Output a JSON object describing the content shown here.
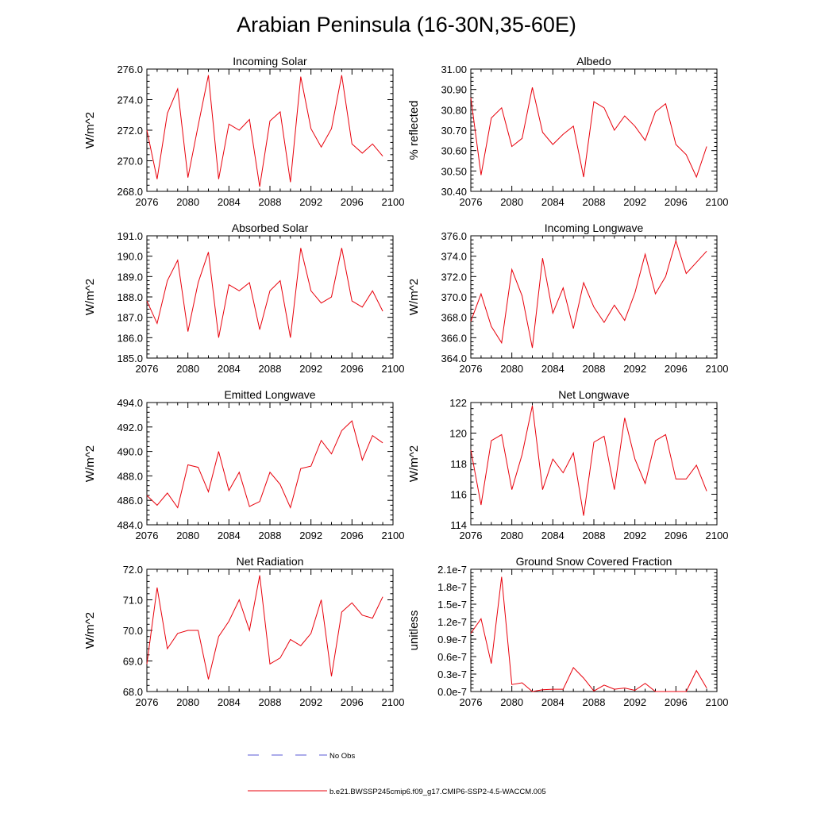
{
  "page": {
    "title": "Arabian Peninsula (16-30N,35-60E)"
  },
  "legend": {
    "no_obs_label": "No Obs",
    "model_label": "b.e21.BWSSP245cmip6.f09_g17.CMIP6-SSP2-4.5-WACCM.005",
    "no_obs_color": "#5a5ad6",
    "model_color": "#e8000b"
  },
  "chart_data": [
    {
      "type": "line",
      "title": "Incoming Solar",
      "ylabel": "W/m^2",
      "xlabel": "",
      "xlim": [
        2076,
        2100
      ],
      "xticks": [
        "2076",
        "2080",
        "2084",
        "2088",
        "2092",
        "2096",
        "2100"
      ],
      "ylim": [
        268.0,
        276.0
      ],
      "yticks": [
        "268.0",
        "270.0",
        "272.0",
        "274.0",
        "276.0"
      ],
      "x": [
        2076,
        2077,
        2078,
        2079,
        2080,
        2081,
        2082,
        2083,
        2084,
        2085,
        2086,
        2087,
        2088,
        2089,
        2090,
        2091,
        2092,
        2093,
        2094,
        2095,
        2096,
        2097,
        2098,
        2099
      ],
      "series": [
        {
          "name": "b.e21.BWSSP245cmip6.f09_g17.CMIP6-SSP2-4.5-WACCM.005",
          "values": [
            272.0,
            268.8,
            273.1,
            274.7,
            268.9,
            272.3,
            275.6,
            268.8,
            272.4,
            272.0,
            272.7,
            268.3,
            272.6,
            273.2,
            268.6,
            275.5,
            272.1,
            270.9,
            272.1,
            275.6,
            271.1,
            270.5,
            271.1,
            270.3
          ]
        }
      ]
    },
    {
      "type": "line",
      "title": "Albedo",
      "ylabel": "% reflected",
      "xlabel": "",
      "xlim": [
        2076,
        2100
      ],
      "xticks": [
        "2076",
        "2080",
        "2084",
        "2088",
        "2092",
        "2096",
        "2100"
      ],
      "ylim": [
        30.4,
        31.0
      ],
      "yticks": [
        "30.40",
        "30.50",
        "30.60",
        "30.70",
        "30.80",
        "30.90",
        "31.00"
      ],
      "x": [
        2076,
        2077,
        2078,
        2079,
        2080,
        2081,
        2082,
        2083,
        2084,
        2085,
        2086,
        2087,
        2088,
        2089,
        2090,
        2091,
        2092,
        2093,
        2094,
        2095,
        2096,
        2097,
        2098,
        2099
      ],
      "series": [
        {
          "name": "b.e21.BWSSP245cmip6.f09_g17.CMIP6-SSP2-4.5-WACCM.005",
          "values": [
            30.86,
            30.48,
            30.76,
            30.81,
            30.62,
            30.66,
            30.91,
            30.69,
            30.63,
            30.68,
            30.72,
            30.47,
            30.84,
            30.81,
            30.7,
            30.77,
            30.72,
            30.65,
            30.79,
            30.83,
            30.63,
            30.58,
            30.47,
            30.62
          ]
        }
      ]
    },
    {
      "type": "line",
      "title": "Absorbed Solar",
      "ylabel": "W/m^2",
      "xlabel": "",
      "xlim": [
        2076,
        2100
      ],
      "xticks": [
        "2076",
        "2080",
        "2084",
        "2088",
        "2092",
        "2096",
        "2100"
      ],
      "ylim": [
        185.0,
        191.0
      ],
      "yticks": [
        "185.0",
        "186.0",
        "187.0",
        "188.0",
        "189.0",
        "190.0",
        "191.0"
      ],
      "x": [
        2076,
        2077,
        2078,
        2079,
        2080,
        2081,
        2082,
        2083,
        2084,
        2085,
        2086,
        2087,
        2088,
        2089,
        2090,
        2091,
        2092,
        2093,
        2094,
        2095,
        2096,
        2097,
        2098,
        2099
      ],
      "series": [
        {
          "name": "b.e21.BWSSP245cmip6.f09_g17.CMIP6-SSP2-4.5-WACCM.005",
          "values": [
            187.8,
            186.7,
            188.8,
            189.8,
            186.3,
            188.7,
            190.2,
            186.0,
            188.6,
            188.3,
            188.7,
            186.4,
            188.3,
            188.8,
            186.0,
            190.4,
            188.3,
            187.7,
            188.0,
            190.4,
            187.8,
            187.5,
            188.3,
            187.3
          ]
        }
      ]
    },
    {
      "type": "line",
      "title": "Incoming Longwave",
      "ylabel": "W/m^2",
      "xlabel": "",
      "xlim": [
        2076,
        2100
      ],
      "xticks": [
        "2076",
        "2080",
        "2084",
        "2088",
        "2092",
        "2096",
        "2100"
      ],
      "ylim": [
        364.0,
        376.0
      ],
      "yticks": [
        "364.0",
        "366.0",
        "368.0",
        "370.0",
        "372.0",
        "374.0",
        "376.0"
      ],
      "x": [
        2076,
        2077,
        2078,
        2079,
        2080,
        2081,
        2082,
        2083,
        2084,
        2085,
        2086,
        2087,
        2088,
        2089,
        2090,
        2091,
        2092,
        2093,
        2094,
        2095,
        2096,
        2097,
        2098,
        2099
      ],
      "series": [
        {
          "name": "b.e21.BWSSP245cmip6.f09_g17.CMIP6-SSP2-4.5-WACCM.005",
          "values": [
            367.6,
            370.3,
            367.1,
            365.5,
            372.7,
            370.1,
            365.0,
            373.8,
            368.4,
            370.9,
            366.9,
            371.4,
            369.0,
            367.5,
            369.2,
            367.7,
            370.4,
            374.2,
            370.3,
            372.0,
            375.5,
            372.3,
            373.4,
            374.5
          ]
        }
      ]
    },
    {
      "type": "line",
      "title": "Emitted Longwave",
      "ylabel": "W/m^2",
      "xlabel": "",
      "xlim": [
        2076,
        2100
      ],
      "xticks": [
        "2076",
        "2080",
        "2084",
        "2088",
        "2092",
        "2096",
        "2100"
      ],
      "ylim": [
        484.0,
        494.0
      ],
      "yticks": [
        "484.0",
        "486.0",
        "488.0",
        "490.0",
        "492.0",
        "494.0"
      ],
      "x": [
        2076,
        2077,
        2078,
        2079,
        2080,
        2081,
        2082,
        2083,
        2084,
        2085,
        2086,
        2087,
        2088,
        2089,
        2090,
        2091,
        2092,
        2093,
        2094,
        2095,
        2096,
        2097,
        2098,
        2099
      ],
      "series": [
        {
          "name": "b.e21.BWSSP245cmip6.f09_g17.CMIP6-SSP2-4.5-WACCM.005",
          "values": [
            486.4,
            485.6,
            486.6,
            485.4,
            488.9,
            488.7,
            486.7,
            490.0,
            486.8,
            488.3,
            485.5,
            485.9,
            488.3,
            487.3,
            485.4,
            488.6,
            488.8,
            490.9,
            489.8,
            491.7,
            492.5,
            489.3,
            491.3,
            490.7
          ]
        }
      ]
    },
    {
      "type": "line",
      "title": "Net Longwave",
      "ylabel": "W/m^2",
      "xlabel": "",
      "xlim": [
        2076,
        2100
      ],
      "xticks": [
        "2076",
        "2080",
        "2084",
        "2088",
        "2092",
        "2096",
        "2100"
      ],
      "ylim": [
        114,
        122
      ],
      "yticks": [
        "114",
        "116",
        "118",
        "120",
        "122"
      ],
      "x": [
        2076,
        2077,
        2078,
        2079,
        2080,
        2081,
        2082,
        2083,
        2084,
        2085,
        2086,
        2087,
        2088,
        2089,
        2090,
        2091,
        2092,
        2093,
        2094,
        2095,
        2096,
        2097,
        2098,
        2099
      ],
      "series": [
        {
          "name": "b.e21.BWSSP245cmip6.f09_g17.CMIP6-SSP2-4.5-WACCM.005",
          "values": [
            118.9,
            115.3,
            119.5,
            119.9,
            116.3,
            118.6,
            121.8,
            116.3,
            118.3,
            117.4,
            118.7,
            114.6,
            119.4,
            119.8,
            116.3,
            121.0,
            118.3,
            116.7,
            119.5,
            119.9,
            117.0,
            117.0,
            117.9,
            116.2
          ]
        }
      ]
    },
    {
      "type": "line",
      "title": "Net Radiation",
      "ylabel": "W/m^2",
      "xlabel": "",
      "xlim": [
        2076,
        2100
      ],
      "xticks": [
        "2076",
        "2080",
        "2084",
        "2088",
        "2092",
        "2096",
        "2100"
      ],
      "ylim": [
        68.0,
        72.0
      ],
      "yticks": [
        "68.0",
        "69.0",
        "70.0",
        "71.0",
        "72.0"
      ],
      "x": [
        2076,
        2077,
        2078,
        2079,
        2080,
        2081,
        2082,
        2083,
        2084,
        2085,
        2086,
        2087,
        2088,
        2089,
        2090,
        2091,
        2092,
        2093,
        2094,
        2095,
        2096,
        2097,
        2098,
        2099
      ],
      "series": [
        {
          "name": "b.e21.BWSSP245cmip6.f09_g17.CMIP6-SSP2-4.5-WACCM.005",
          "values": [
            68.9,
            71.4,
            69.4,
            69.9,
            70.0,
            70.0,
            68.4,
            69.8,
            70.3,
            71.0,
            70.0,
            71.8,
            68.9,
            69.1,
            69.7,
            69.5,
            69.9,
            71.0,
            68.5,
            70.6,
            70.9,
            70.5,
            70.4,
            71.1
          ]
        }
      ]
    },
    {
      "type": "line",
      "title": "Ground Snow Covered Fraction",
      "ylabel": "unitless",
      "xlabel": "",
      "xlim": [
        2076,
        2100
      ],
      "xticks": [
        "2076",
        "2080",
        "2084",
        "2088",
        "2092",
        "2096",
        "2100"
      ],
      "ylim": [
        0.0,
        2.1e-07
      ],
      "yticks": [
        "0.0e-7",
        "0.3e-7",
        "0.6e-7",
        "0.9e-7",
        "1.2e-7",
        "1.5e-7",
        "1.8e-7",
        "2.1e-7"
      ],
      "x": [
        2076,
        2077,
        2078,
        2079,
        2080,
        2081,
        2082,
        2083,
        2084,
        2085,
        2086,
        2087,
        2088,
        2089,
        2090,
        2091,
        2092,
        2093,
        2094,
        2095,
        2096,
        2097,
        2098,
        2099
      ],
      "series": [
        {
          "name": "b.e21.BWSSP245cmip6.f09_g17.CMIP6-SSP2-4.5-WACCM.005",
          "values": [
            1e-07,
            1.25e-07,
            4.8e-08,
            1.97e-07,
            1.2e-08,
            1.5e-08,
            0.0,
            3e-09,
            4e-09,
            4e-09,
            4.1e-08,
            2.3e-08,
            1e-09,
            1.1e-08,
            4e-09,
            6e-09,
            2e-09,
            1.4e-08,
            0.0,
            0.0,
            0.0,
            0.0,
            3.6e-08,
            6e-09
          ]
        }
      ]
    }
  ]
}
